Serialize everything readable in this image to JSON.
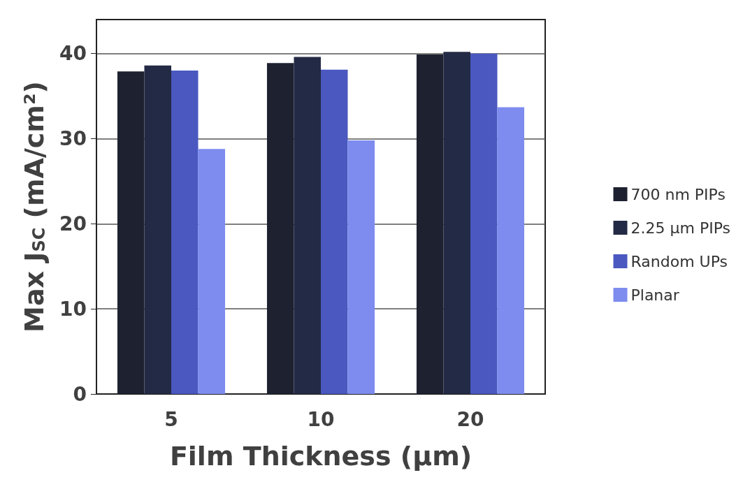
{
  "chart_data": {
    "type": "bar",
    "xlabel": "Film Thickness (µm)",
    "ylabel": "Max J$_{SC}$ (mA/cm²)",
    "categories": [
      "5",
      "10",
      "20"
    ],
    "series": [
      {
        "name": "700 nm PIPs",
        "color": "#1e2130",
        "values": [
          37.9,
          38.9,
          39.9
        ]
      },
      {
        "name": "2.25 µm PIPs",
        "color": "#232a45",
        "values": [
          38.6,
          39.6,
          40.2
        ]
      },
      {
        "name": "Random UPs",
        "color": "#4a58c0",
        "values": [
          38.0,
          38.1,
          40.0
        ]
      },
      {
        "name": "Planar",
        "color": "#7d8cee",
        "values": [
          28.8,
          29.8,
          33.7
        ]
      }
    ],
    "ylim": [
      0,
      44
    ],
    "yticks": [
      0,
      10,
      20,
      30,
      40
    ],
    "grid": "y",
    "legend": "right"
  }
}
